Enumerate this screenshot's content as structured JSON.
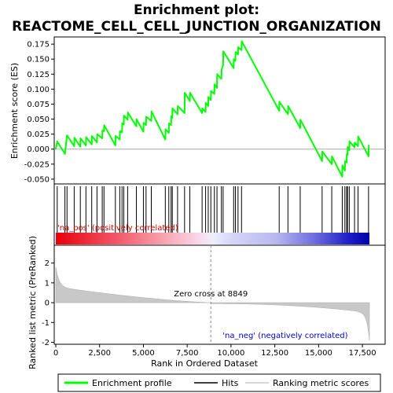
{
  "chart_data": {
    "type": "line",
    "title_line1": "Enrichment plot:",
    "title_line2": "REACTOME_CELL_CELL_JUNCTION_ORGANIZATION",
    "xlabel": "Rank in Ordered Dataset",
    "ylabel_top": "Enrichment score (ES)",
    "ylabel_bottom": "Ranked list metric (PreRanked)",
    "xlim": [
      0,
      17900
    ],
    "xticks": [
      0,
      2500,
      5000,
      7500,
      10000,
      12500,
      15000,
      17500
    ],
    "xtick_labels": [
      "0",
      "2,500",
      "5,000",
      "7,500",
      "10,000",
      "12,500",
      "15,000",
      "17,500"
    ],
    "es_ylim": [
      -0.058,
      0.187
    ],
    "es_yticks": [
      -0.05,
      -0.025,
      0.0,
      0.025,
      0.05,
      0.075,
      0.1,
      0.125,
      0.15,
      0.175
    ],
    "es_ytick_labels": [
      "-0.050",
      "-0.025",
      "0.000",
      "0.025",
      "0.050",
      "0.075",
      "0.100",
      "0.125",
      "0.150",
      "0.175"
    ],
    "metric_ylim": [
      -2.1,
      2.9
    ],
    "metric_yticks": [
      -2,
      -1,
      0,
      1,
      2
    ],
    "metric_ytick_labels": [
      "-2",
      "-1",
      "0",
      "1",
      "2"
    ],
    "zero_cross": 8849,
    "zero_cross_label": "Zero cross at 8849",
    "pos_label": "'na_pos' (positively correlated)",
    "neg_label": "'na_neg' (negatively correlated)",
    "hits": [
      80,
      520,
      640,
      1050,
      1400,
      1720,
      2050,
      2350,
      2650,
      2750,
      3400,
      3650,
      3780,
      3880,
      4100,
      4600,
      5000,
      5150,
      5450,
      6250,
      6450,
      6580,
      6650,
      6950,
      7350,
      7650,
      8350,
      8550,
      8700,
      8850,
      9050,
      9200,
      9450,
      9550,
      10150,
      10250,
      10400,
      10600,
      12750,
      13250,
      13950,
      15200,
      15750,
      16350,
      16500,
      16600,
      16650,
      16750,
      17050,
      17250,
      17850
    ],
    "es_curve": [
      [
        0,
        0.0
      ],
      [
        80,
        0.013
      ],
      [
        520,
        -0.008
      ],
      [
        640,
        0.023
      ],
      [
        1050,
        0.005
      ],
      [
        1060,
        0.019
      ],
      [
        1400,
        0.004
      ],
      [
        1410,
        0.018
      ],
      [
        1720,
        0.006
      ],
      [
        1730,
        0.02
      ],
      [
        2050,
        0.008
      ],
      [
        2060,
        0.022
      ],
      [
        2350,
        0.011
      ],
      [
        2360,
        0.025
      ],
      [
        2650,
        0.018
      ],
      [
        2660,
        0.031
      ],
      [
        2750,
        0.03
      ],
      [
        2760,
        0.04
      ],
      [
        3400,
        0.006
      ],
      [
        3410,
        0.022
      ],
      [
        3650,
        0.016
      ],
      [
        3660,
        0.03
      ],
      [
        3780,
        0.028
      ],
      [
        3790,
        0.043
      ],
      [
        3880,
        0.041
      ],
      [
        3890,
        0.056
      ],
      [
        4100,
        0.049
      ],
      [
        4110,
        0.061
      ],
      [
        4600,
        0.038
      ],
      [
        4610,
        0.05
      ],
      [
        5000,
        0.029
      ],
      [
        5010,
        0.044
      ],
      [
        5150,
        0.04
      ],
      [
        5160,
        0.054
      ],
      [
        5450,
        0.047
      ],
      [
        5460,
        0.063
      ],
      [
        6250,
        0.016
      ],
      [
        6260,
        0.033
      ],
      [
        6450,
        0.027
      ],
      [
        6460,
        0.043
      ],
      [
        6580,
        0.04
      ],
      [
        6590,
        0.055
      ],
      [
        6650,
        0.052
      ],
      [
        6660,
        0.068
      ],
      [
        6950,
        0.058
      ],
      [
        6960,
        0.072
      ],
      [
        7350,
        0.06
      ],
      [
        7360,
        0.094
      ],
      [
        7650,
        0.08
      ],
      [
        7660,
        0.094
      ],
      [
        8350,
        0.06
      ],
      [
        8360,
        0.068
      ],
      [
        8550,
        0.062
      ],
      [
        8560,
        0.077
      ],
      [
        8700,
        0.072
      ],
      [
        8710,
        0.087
      ],
      [
        8850,
        0.082
      ],
      [
        8860,
        0.097
      ],
      [
        9050,
        0.092
      ],
      [
        9060,
        0.108
      ],
      [
        9200,
        0.102
      ],
      [
        9210,
        0.125
      ],
      [
        9450,
        0.117
      ],
      [
        9460,
        0.132
      ],
      [
        9550,
        0.14
      ],
      [
        9560,
        0.163
      ],
      [
        10150,
        0.135
      ],
      [
        10160,
        0.15
      ],
      [
        10250,
        0.147
      ],
      [
        10260,
        0.162
      ],
      [
        10400,
        0.158
      ],
      [
        10410,
        0.17
      ],
      [
        10600,
        0.165
      ],
      [
        10610,
        0.18
      ],
      [
        12750,
        0.064
      ],
      [
        12760,
        0.079
      ],
      [
        13250,
        0.058
      ],
      [
        13260,
        0.072
      ],
      [
        13950,
        0.035
      ],
      [
        13960,
        0.049
      ],
      [
        15200,
        -0.02
      ],
      [
        15210,
        -0.004
      ],
      [
        15750,
        -0.025
      ],
      [
        15760,
        -0.012
      ],
      [
        16350,
        -0.046
      ],
      [
        16360,
        -0.027
      ],
      [
        16500,
        -0.036
      ],
      [
        16510,
        -0.02
      ],
      [
        16600,
        -0.022
      ],
      [
        16610,
        -0.008
      ],
      [
        16650,
        -0.01
      ],
      [
        16660,
        0.004
      ],
      [
        16750,
        -0.002
      ],
      [
        16760,
        0.013
      ],
      [
        17050,
        0.003
      ],
      [
        17060,
        0.011
      ],
      [
        17250,
        0.005
      ],
      [
        17260,
        0.021
      ],
      [
        17850,
        -0.012
      ],
      [
        17860,
        0.006
      ],
      [
        17900,
        0.005
      ]
    ],
    "colors": {
      "curve": "#00ff00",
      "hit": "#000000",
      "pos_text": "#cc0000",
      "neg_text": "#0000cc",
      "metric_fill": "#c8c8c8",
      "zero_line": "#888888"
    }
  },
  "legend": {
    "items": [
      {
        "label": "Enrichment profile",
        "icon": "green-line-icon"
      },
      {
        "label": "Hits",
        "icon": "black-line-icon"
      },
      {
        "label": "Ranking metric scores",
        "icon": "gray-line-icon"
      }
    ]
  }
}
